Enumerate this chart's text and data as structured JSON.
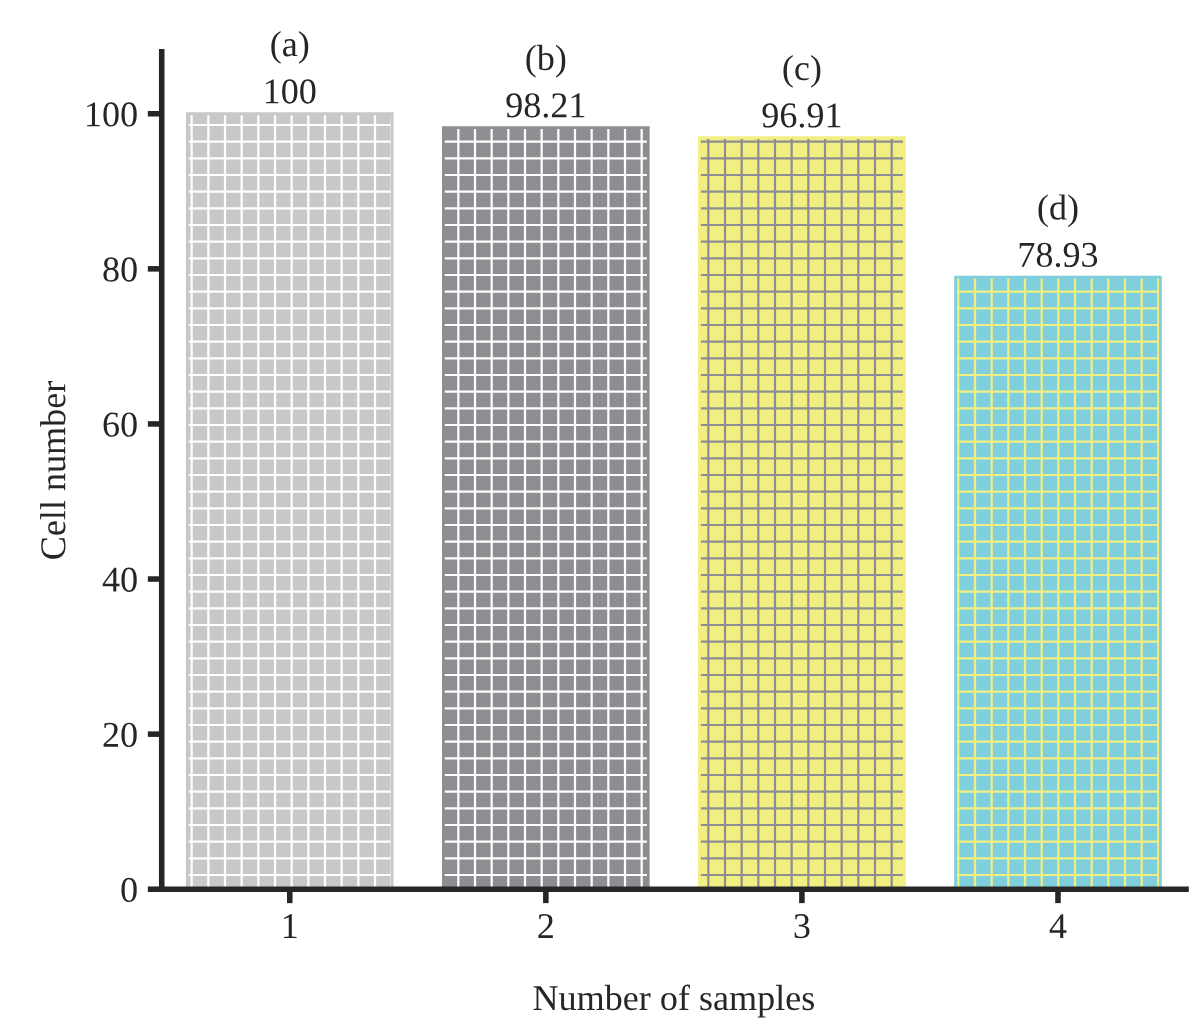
{
  "chart_data": {
    "type": "bar",
    "xlabel": "Number of samples",
    "ylabel": "Cell number",
    "categories": [
      "1",
      "2",
      "3",
      "4"
    ],
    "values": [
      100,
      98.21,
      96.91,
      78.93
    ],
    "colors": [
      "#c8c8ca",
      "#8e8e92",
      "#f2ef82",
      "#7fd0dc"
    ],
    "data_labels": true,
    "ylim": [
      0,
      108
    ],
    "yticks": [
      0,
      20,
      40,
      60,
      80,
      100
    ],
    "annotations": [
      {
        "text": "(a)",
        "x": "1",
        "y": 100
      },
      {
        "text": "(b)",
        "x": "2",
        "y": 98.21
      },
      {
        "text": "(c)",
        "x": "3",
        "y": 96.91
      },
      {
        "text": "(d)",
        "x": "4",
        "y": 78.93
      }
    ]
  }
}
